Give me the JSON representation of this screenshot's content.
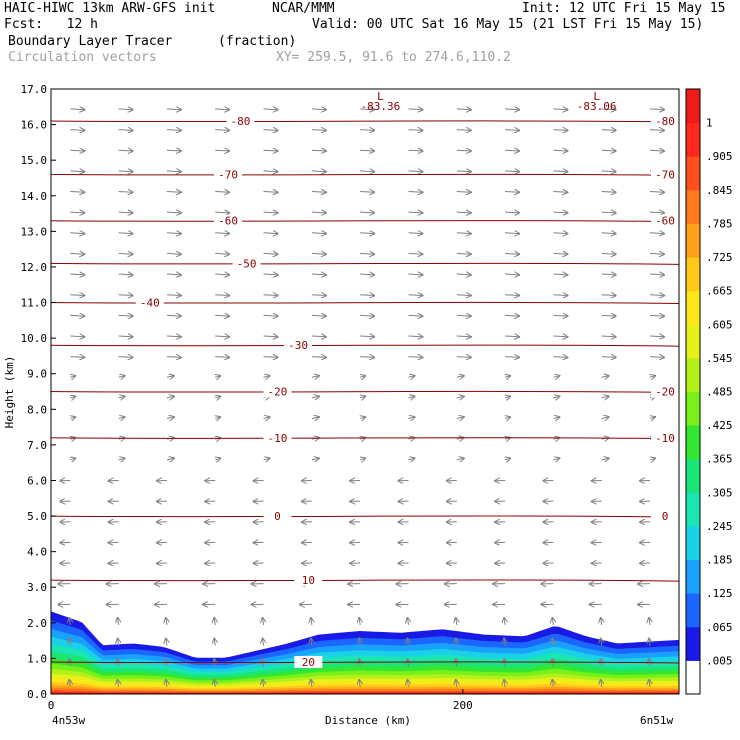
{
  "header": {
    "line1_left": "HAIC-HIWC 13km ARW-GFS init",
    "line1_mid": "NCAR/MMM",
    "line1_right": "Init: 12 UTC Fri 15 May 15",
    "line2_left": "Fcst:   12 h",
    "line2_right": "Valid: 00 UTC Sat 16 May 15 (21 LST Fri 15 May 15)",
    "line3_left": "Boundary Layer Tracer",
    "line3_mid": "(fraction)",
    "line4_left": "Circulation vectors",
    "line4_mid": "XY= 259.5, 91.6 to 274.6,110.2"
  },
  "chart_data": {
    "type": "cross-section",
    "xlabel": "Distance (km)",
    "ylabel": "Height (km)",
    "ylim": [
      0,
      17
    ],
    "xlim": [
      0,
      305
    ],
    "x_ticks": [
      "0",
      "200"
    ],
    "y_ticks": [
      "0.0",
      "1.0",
      "2.0",
      "3.0",
      "4.0",
      "5.0",
      "6.0",
      "7.0",
      "8.0",
      "9.0",
      "10.0",
      "11.0",
      "12.0",
      "13.0",
      "14.0",
      "15.0",
      "16.0",
      "17.0"
    ],
    "left_endpoint": "4n53w",
    "right_endpoint": "6n51w",
    "grid": true,
    "low_markers": [
      {
        "symbol": "L",
        "value": "-83.36",
        "x_km": 160
      },
      {
        "symbol": "L",
        "value": "-83.06",
        "x_km": 265
      }
    ],
    "temperature_contours": [
      {
        "label": "-80",
        "y_km": 16.1,
        "label_x_km": [
          92,
          304
        ]
      },
      {
        "label": "-70",
        "y_km": 14.6,
        "label_x_km": [
          86,
          304
        ]
      },
      {
        "label": "-60",
        "y_km": 13.3,
        "label_x_km": [
          86,
          304
        ]
      },
      {
        "label": "-50",
        "y_km": 12.1,
        "label_x_km": [
          95
        ]
      },
      {
        "label": "-40",
        "y_km": 11.0,
        "label_x_km": [
          48
        ]
      },
      {
        "label": "-30",
        "y_km": 9.8,
        "label_x_km": [
          120
        ]
      },
      {
        "label": "-20",
        "y_km": 8.5,
        "label_x_km": [
          110,
          304
        ]
      },
      {
        "label": "-10",
        "y_km": 7.2,
        "label_x_km": [
          110,
          304
        ]
      },
      {
        "label": "0",
        "y_km": 5.0,
        "label_x_km": [
          110,
          304
        ]
      },
      {
        "label": "10",
        "y_km": 3.2,
        "label_x_km": [
          125
        ]
      },
      {
        "label": "20",
        "y_km": 0.9,
        "label_x_km": [
          125
        ]
      }
    ],
    "tracer_top_km": {
      "x_km": [
        0,
        15,
        25,
        40,
        55,
        70,
        85,
        100,
        115,
        130,
        150,
        170,
        190,
        210,
        230,
        245,
        260,
        275,
        290,
        305
      ],
      "top": [
        2.3,
        2.0,
        1.35,
        1.4,
        1.3,
        1.0,
        1.0,
        1.2,
        1.4,
        1.65,
        1.75,
        1.7,
        1.8,
        1.65,
        1.6,
        1.9,
        1.6,
        1.4,
        1.45,
        1.5
      ]
    },
    "colorbar": {
      "labels": [
        ".005",
        ".065",
        ".125",
        ".185",
        ".245",
        ".305",
        ".365",
        ".425",
        ".485",
        ".545",
        ".605",
        ".665",
        ".725",
        ".785",
        ".845",
        ".905",
        "1"
      ],
      "colors": [
        "#ffffff",
        "#1a1ae6",
        "#1a66ff",
        "#1aa0ff",
        "#1ad2e6",
        "#1ae6b4",
        "#1ae678",
        "#32e632",
        "#78f01a",
        "#b4f01a",
        "#e6f01a",
        "#ffe61a",
        "#ffc81a",
        "#ffa01a",
        "#ff781a",
        "#ff501a",
        "#ff281a",
        "#f01a1a"
      ]
    }
  }
}
